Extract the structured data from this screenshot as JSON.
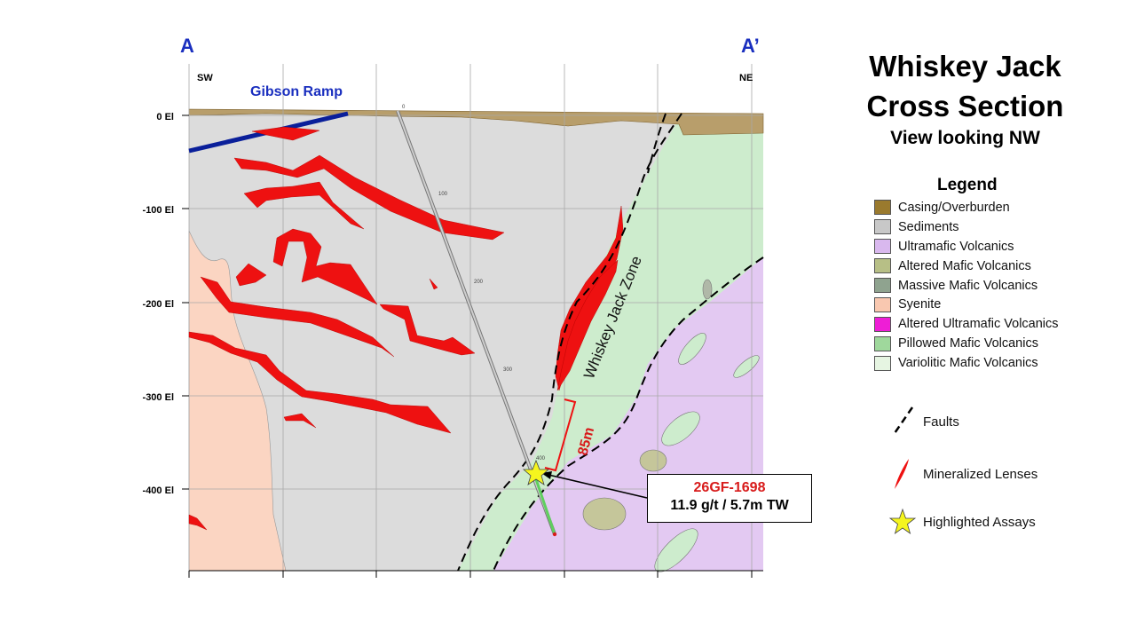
{
  "section": {
    "endpoint_left": "A",
    "endpoint_right": "A’",
    "direction_left": "SW",
    "direction_right": "NE",
    "ramp_label": "Gibson Ramp",
    "zone_label": "Whiskey Jack Zone",
    "interval_label": "85m",
    "elevation_labels": [
      "0 El",
      "-100 El",
      "-200 El",
      "-300 El",
      "-400 El"
    ],
    "hole_depth_labels": [
      "0",
      "100",
      "200",
      "300",
      "400"
    ]
  },
  "title": {
    "line1": "Whiskey Jack",
    "line2": "Cross Section",
    "subtitle": "View looking NW"
  },
  "legend": {
    "title": "Legend",
    "items": [
      {
        "label": "Casing/Overburden",
        "color": "#9a7a2e"
      },
      {
        "label": "Sediments",
        "color": "#c8c8c8"
      },
      {
        "label": "Ultramafic Volcanics",
        "color": "#d9b8ee"
      },
      {
        "label": "Altered Mafic Volcanics",
        "color": "#b7bf86"
      },
      {
        "label": "Massive Mafic Volcanics",
        "color": "#8fa38f"
      },
      {
        "label": "Syenite",
        "color": "#f9c8b0"
      },
      {
        "label": "Altered Ultramafic Volcanics",
        "color": "#ee1ed6"
      },
      {
        "label": "Pillowed Mafic Volcanics",
        "color": "#9fd89c"
      },
      {
        "label": "Variolitic Mafic Volcanics",
        "color": "#e6f5e2"
      }
    ],
    "symbols": {
      "faults": "Faults",
      "lenses": "Mineralized Lenses",
      "assays": "Highlighted Assays"
    }
  },
  "callout": {
    "hole_id": "26GF-1698",
    "assay": "11.9 g/t / 5.7m TW"
  },
  "colors": {
    "mineralized": "#ee1111",
    "ramp": "#0a1f9a",
    "label_blue": "#1a2fbf",
    "star": "#f5f51e",
    "sediment": "#dcdcdc",
    "syenite": "#fbd5c2",
    "pillowed": "#cdeccd",
    "ultramafic": "#e3c9f2",
    "overburden": "#b89e6b"
  }
}
